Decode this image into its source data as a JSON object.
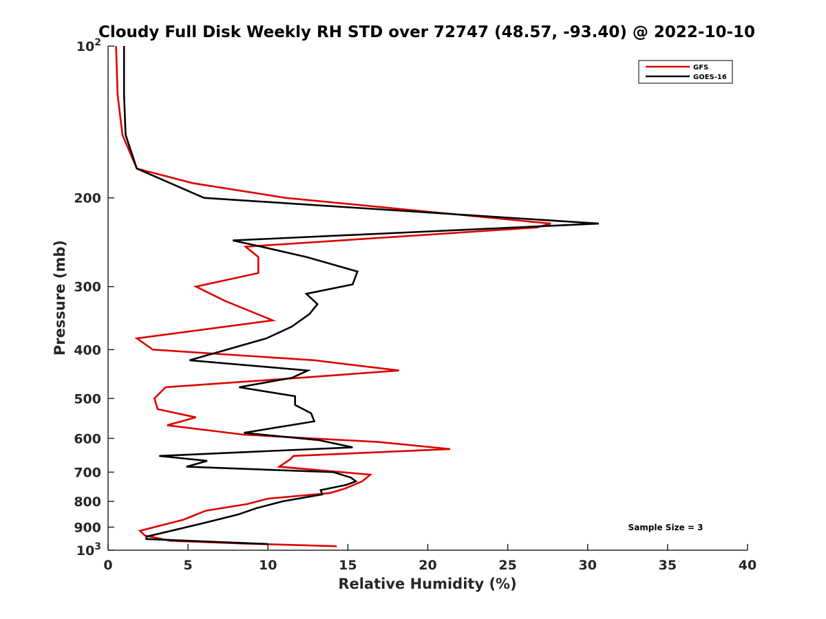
{
  "chart_data": {
    "type": "line",
    "title": "Cloudy Full Disk Weekly RH STD over 72747 (48.57, -93.40) @ 2022-10-10",
    "xlabel": "Relative Humidity (%)",
    "ylabel": "Pressure (mb)",
    "xlim": [
      0,
      40
    ],
    "ylim": [
      100,
      1000
    ],
    "yscale": "log",
    "y_reversed": true,
    "grid": false,
    "legend_position": "top-right",
    "x_ticks": [
      "0",
      "5",
      "10",
      "15",
      "20",
      "25",
      "30",
      "35",
      "40"
    ],
    "y_ticks": [
      {
        "value": 100,
        "base": "10",
        "exp": "2"
      },
      {
        "value": 200,
        "label": "200"
      },
      {
        "value": 300,
        "label": "300"
      },
      {
        "value": 400,
        "label": "400"
      },
      {
        "value": 500,
        "label": "500"
      },
      {
        "value": 600,
        "label": "600"
      },
      {
        "value": 700,
        "label": "700"
      },
      {
        "value": 800,
        "label": "800"
      },
      {
        "value": 900,
        "label": "900"
      },
      {
        "value": 1000,
        "base": "10",
        "exp": "3"
      }
    ],
    "annotation": "Sample Size = 3",
    "series": [
      {
        "name": "GFS",
        "color": "#dd0000",
        "points": [
          [
            0.5,
            100
          ],
          [
            0.6,
            125
          ],
          [
            0.9,
            150
          ],
          [
            1.8,
            175
          ],
          [
            5.3,
            187
          ],
          [
            11.1,
            200
          ],
          [
            27.7,
            225
          ],
          [
            26.8,
            229
          ],
          [
            8.6,
            250
          ],
          [
            9.4,
            262
          ],
          [
            9.4,
            282
          ],
          [
            5.5,
            300
          ],
          [
            7.3,
            320
          ],
          [
            10.3,
            350
          ],
          [
            1.8,
            380
          ],
          [
            2.8,
            400
          ],
          [
            12.9,
            420
          ],
          [
            18.2,
            440
          ],
          [
            12.0,
            455
          ],
          [
            3.6,
            475
          ],
          [
            2.9,
            500
          ],
          [
            3.1,
            525
          ],
          [
            5.5,
            545
          ],
          [
            3.7,
            565
          ],
          [
            8.5,
            590
          ],
          [
            16.9,
            610
          ],
          [
            21.4,
            630
          ],
          [
            11.6,
            650
          ],
          [
            11.4,
            660
          ],
          [
            10.7,
            683
          ],
          [
            16.4,
            708
          ],
          [
            15.9,
            730
          ],
          [
            14.8,
            755
          ],
          [
            13.9,
            770
          ],
          [
            10.0,
            790
          ],
          [
            8.7,
            810
          ],
          [
            6.1,
            835
          ],
          [
            5.1,
            860
          ],
          [
            4.7,
            870
          ],
          [
            4.1,
            880
          ],
          [
            2.0,
            915
          ],
          [
            2.3,
            935
          ],
          [
            3.9,
            958
          ],
          [
            8.5,
            970
          ],
          [
            14.3,
            982
          ]
        ]
      },
      {
        "name": "GOES-16",
        "color": "#000000",
        "points": [
          [
            1.0,
            100
          ],
          [
            1.0,
            125
          ],
          [
            1.1,
            150
          ],
          [
            1.8,
            175
          ],
          [
            6.0,
            200
          ],
          [
            30.7,
            225
          ],
          [
            7.8,
            243
          ],
          [
            9.1,
            248
          ],
          [
            12.4,
            262
          ],
          [
            15.6,
            280
          ],
          [
            15.3,
            297
          ],
          [
            12.4,
            310
          ],
          [
            13.1,
            325
          ],
          [
            12.6,
            340
          ],
          [
            11.5,
            360
          ],
          [
            9.9,
            380
          ],
          [
            5.1,
            420
          ],
          [
            12.5,
            440
          ],
          [
            11.5,
            455
          ],
          [
            8.2,
            475
          ],
          [
            11.7,
            495
          ],
          [
            11.7,
            515
          ],
          [
            12.7,
            535
          ],
          [
            12.9,
            555
          ],
          [
            8.5,
            585
          ],
          [
            13.2,
            605
          ],
          [
            15.3,
            625
          ],
          [
            3.2,
            650
          ],
          [
            6.2,
            665
          ],
          [
            4.9,
            683
          ],
          [
            14.1,
            700
          ],
          [
            15.2,
            718
          ],
          [
            15.5,
            730
          ],
          [
            14.9,
            742
          ],
          [
            13.3,
            760
          ],
          [
            13.4,
            775
          ],
          [
            10.9,
            800
          ],
          [
            9.3,
            825
          ],
          [
            8.1,
            850
          ],
          [
            6.2,
            880
          ],
          [
            2.4,
            940
          ],
          [
            2.4,
            950
          ],
          [
            10.0,
            972
          ]
        ]
      }
    ]
  }
}
